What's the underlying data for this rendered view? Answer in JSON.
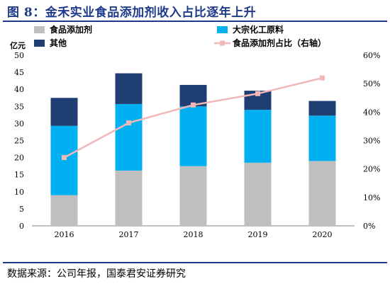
{
  "header": {
    "title": "图 8：金禾实业食品添加剂收入占比逐年上升"
  },
  "source": "数据来源：公司年报，国泰君安证券研究",
  "chart_data": {
    "type": "bar",
    "stacked": true,
    "unit_left": "亿元",
    "categories": [
      "2016",
      "2017",
      "2018",
      "2019",
      "2020"
    ],
    "series": [
      {
        "name": "食品添加剂",
        "type": "bar",
        "axis": "left",
        "color": "#bfbfbf",
        "values": [
          9.0,
          16.2,
          17.5,
          18.5,
          19.0
        ]
      },
      {
        "name": "大宗化工原料",
        "type": "bar",
        "axis": "left",
        "color": "#00b0f0",
        "values": [
          20.3,
          19.5,
          17.5,
          15.5,
          13.3
        ]
      },
      {
        "name": "其他",
        "type": "bar",
        "axis": "left",
        "color": "#1f3e72",
        "values": [
          8.2,
          9.0,
          6.3,
          5.6,
          4.3
        ]
      },
      {
        "name": "食品添加剂占比（右轴）",
        "type": "line",
        "axis": "right",
        "color": "#f2b8b8",
        "values": [
          24,
          36.2,
          42.5,
          46.5,
          52
        ]
      }
    ],
    "y_left": {
      "min": 0,
      "max": 50,
      "step": 5,
      "ticks": [
        "0",
        "5",
        "10",
        "15",
        "20",
        "25",
        "30",
        "35",
        "40",
        "45",
        "50"
      ]
    },
    "y_right": {
      "min": 0,
      "max": 60,
      "step": 10,
      "ticks": [
        "0%",
        "10%",
        "20%",
        "30%",
        "40%",
        "50%",
        "60%"
      ]
    },
    "legend": {
      "position": "top",
      "items": [
        {
          "label": "食品添加剂",
          "marker": "box",
          "color": "#bfbfbf"
        },
        {
          "label": "大宗化工原料",
          "marker": "box",
          "color": "#00b0f0"
        },
        {
          "label": "其他",
          "marker": "box",
          "color": "#1f3e72"
        },
        {
          "label": "食品添加剂占比（右轴）",
          "marker": "line",
          "color": "#f2b8b8"
        }
      ]
    }
  }
}
